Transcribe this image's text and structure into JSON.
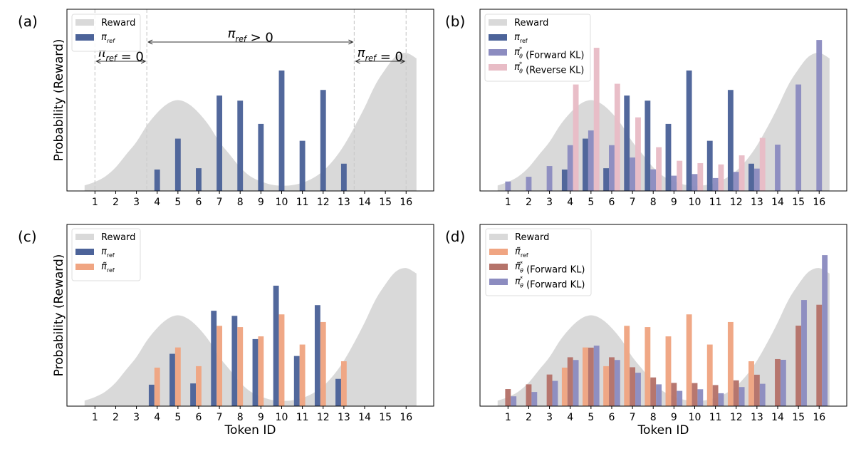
{
  "colors": {
    "reward": "#d9d9d9",
    "pi_ref": "#4c6399",
    "pi_theta_forward": "#8c8cc0",
    "pi_theta_reverse": "#e8bcc6",
    "pi_tilde_ref": "#f0a582",
    "pi_tilde_theta_forward": "#b5736a",
    "axis": "#000000",
    "dashed_line": "#cccccc"
  },
  "chart_data": [
    {
      "panel_label": "(a)",
      "type": "bar",
      "ylabel": "Probability (Reward)",
      "xlabel": "",
      "categories": [
        1,
        2,
        3,
        4,
        5,
        6,
        7,
        8,
        9,
        10,
        11,
        12,
        13,
        14,
        15,
        16
      ],
      "ylim": [
        0,
        1
      ],
      "xlim": [
        -0.35,
        17.33
      ],
      "grid": false,
      "legend_placement": "upper-left",
      "reward": {
        "name": "Reward",
        "type": "area",
        "x": [
          0.5,
          1,
          1.5,
          2,
          2.5,
          3,
          3.5,
          4,
          4.5,
          5,
          5.5,
          6,
          6.5,
          7,
          7.5,
          8,
          8.5,
          9,
          9.5,
          10,
          10.5,
          11,
          11.5,
          12,
          12.5,
          13,
          13.5,
          14,
          14.5,
          15,
          15.5,
          16,
          16.5
        ],
        "y": [
          0.03,
          0.05,
          0.08,
          0.13,
          0.2,
          0.27,
          0.36,
          0.43,
          0.48,
          0.5,
          0.48,
          0.43,
          0.36,
          0.27,
          0.2,
          0.13,
          0.08,
          0.053,
          0.035,
          0.029,
          0.032,
          0.045,
          0.07,
          0.11,
          0.17,
          0.25,
          0.35,
          0.46,
          0.58,
          0.67,
          0.74,
          0.76,
          0.73
        ]
      },
      "series": [
        {
          "name": "π_ref",
          "legend": {
            "base": "π",
            "sub": "ref",
            "sup": "",
            "suffix": "",
            "italic_sub": true
          },
          "color_key": "pi_ref",
          "offset": 0,
          "x": [
            4,
            5,
            6,
            7,
            8,
            9,
            10,
            11,
            12,
            13
          ],
          "values": [
            0.118,
            0.288,
            0.125,
            0.525,
            0.497,
            0.369,
            0.663,
            0.276,
            0.556,
            0.15
          ]
        }
      ],
      "vlines": [
        1,
        3.5,
        13.5,
        16
      ],
      "annotations": [
        {
          "text_base": "π",
          "text_sub": "ref",
          "text_rest": " = 0",
          "from": 1,
          "to": 3.5,
          "level": "low"
        },
        {
          "text_base": "π",
          "text_sub": "ref",
          "text_rest": " > 0",
          "from": 3.5,
          "to": 13.5,
          "level": "high"
        },
        {
          "text_base": "π",
          "text_sub": "ref",
          "text_rest": " = 0",
          "from": 13.5,
          "to": 16,
          "level": "low"
        }
      ]
    },
    {
      "panel_label": "(b)",
      "type": "bar",
      "ylabel": "",
      "xlabel": "",
      "categories": [
        1,
        2,
        3,
        4,
        5,
        6,
        7,
        8,
        9,
        10,
        11,
        12,
        13,
        14,
        15,
        16
      ],
      "ylim": [
        0,
        1
      ],
      "xlim": [
        -0.35,
        17.33
      ],
      "grid": false,
      "legend_placement": "upper-left",
      "reward": {
        "name": "Reward",
        "type": "area",
        "same_as_panel": "(a)"
      },
      "series": [
        {
          "name": "π_ref",
          "legend": {
            "base": "π",
            "sub": "ref",
            "sup": "",
            "suffix": ""
          },
          "color_key": "pi_ref",
          "offset": -1,
          "x": [
            4,
            5,
            6,
            7,
            8,
            9,
            10,
            11,
            12,
            13
          ],
          "values": [
            0.118,
            0.288,
            0.125,
            0.525,
            0.497,
            0.369,
            0.663,
            0.276,
            0.556,
            0.15
          ]
        },
        {
          "name": "π_θ* (Forward KL)",
          "legend": {
            "base": "π",
            "sub": "θ",
            "sup": "*",
            "suffix": " (Forward KL)"
          },
          "color_key": "pi_theta_forward",
          "offset": 0,
          "x": [
            1,
            2,
            3,
            4,
            5,
            6,
            7,
            8,
            9,
            10,
            11,
            12,
            13,
            14,
            15,
            16
          ],
          "values": [
            0.052,
            0.078,
            0.137,
            0.252,
            0.333,
            0.252,
            0.184,
            0.119,
            0.084,
            0.093,
            0.071,
            0.105,
            0.123,
            0.255,
            0.586,
            0.831
          ]
        },
        {
          "name": "π_θ* (Reverse KL)",
          "legend": {
            "base": "π",
            "sub": "θ",
            "sup": "*",
            "suffix": " (Reverse KL)"
          },
          "color_key": "pi_theta_reverse",
          "offset": 1,
          "x": [
            4,
            5,
            6,
            7,
            8,
            9,
            10,
            11,
            12,
            13
          ],
          "values": [
            0.586,
            0.788,
            0.59,
            0.405,
            0.241,
            0.166,
            0.153,
            0.146,
            0.196,
            0.292
          ]
        }
      ]
    },
    {
      "panel_label": "(c)",
      "type": "bar",
      "ylabel": "Probability (Reward)",
      "xlabel": "Token ID",
      "categories": [
        1,
        2,
        3,
        4,
        5,
        6,
        7,
        8,
        9,
        10,
        11,
        12,
        13,
        14,
        15,
        16
      ],
      "ylim": [
        0,
        1
      ],
      "xlim": [
        -0.35,
        17.33
      ],
      "grid": false,
      "legend_placement": "upper-left",
      "reward": {
        "name": "Reward",
        "type": "area",
        "same_as_panel": "(a)"
      },
      "series": [
        {
          "name": "π_ref",
          "legend": {
            "base": "π",
            "sub": "ref",
            "sup": "",
            "suffix": ""
          },
          "color_key": "pi_ref",
          "offset": -1,
          "x": [
            4,
            5,
            6,
            7,
            8,
            9,
            10,
            11,
            12,
            13
          ],
          "values": [
            0.118,
            0.288,
            0.125,
            0.525,
            0.497,
            0.369,
            0.663,
            0.276,
            0.556,
            0.15
          ]
        },
        {
          "name": "π̃_ref",
          "legend": {
            "base": "π̃",
            "sub": "ref",
            "sup": "",
            "suffix": ""
          },
          "color_key": "pi_tilde_ref",
          "offset": 0,
          "x": [
            4,
            5,
            6,
            7,
            8,
            9,
            10,
            11,
            12,
            13
          ],
          "values": [
            0.212,
            0.323,
            0.22,
            0.442,
            0.435,
            0.384,
            0.505,
            0.339,
            0.463,
            0.247
          ]
        }
      ]
    },
    {
      "panel_label": "(d)",
      "type": "bar",
      "ylabel": "",
      "xlabel": "Token ID",
      "categories": [
        1,
        2,
        3,
        4,
        5,
        6,
        7,
        8,
        9,
        10,
        11,
        12,
        13,
        14,
        15,
        16
      ],
      "ylim": [
        0,
        1
      ],
      "xlim": [
        -0.35,
        17.33
      ],
      "grid": false,
      "legend_placement": "upper-left",
      "reward": {
        "name": "Reward",
        "type": "area",
        "same_as_panel": "(a)"
      },
      "series": [
        {
          "name": "π̃_ref",
          "legend": {
            "base": "π̃",
            "sub": "ref",
            "sup": "",
            "suffix": ""
          },
          "color_key": "pi_tilde_ref",
          "offset": -1,
          "x": [
            4,
            5,
            6,
            7,
            8,
            9,
            10,
            11,
            12,
            13
          ],
          "values": [
            0.212,
            0.323,
            0.22,
            0.442,
            0.435,
            0.384,
            0.505,
            0.339,
            0.463,
            0.247
          ]
        },
        {
          "name": "π̃_θ* (Forward KL)",
          "legend": {
            "base": "π̃",
            "sub": "θ",
            "sup": "*",
            "suffix": " (Forward KL)"
          },
          "color_key": "pi_tilde_theta_forward",
          "offset": 0,
          "x": [
            1,
            2,
            3,
            4,
            5,
            6,
            7,
            8,
            9,
            10,
            11,
            12,
            13,
            14,
            15,
            16
          ],
          "values": [
            0.094,
            0.12,
            0.174,
            0.269,
            0.322,
            0.269,
            0.214,
            0.158,
            0.128,
            0.127,
            0.116,
            0.142,
            0.173,
            0.259,
            0.443,
            0.558
          ]
        },
        {
          "name": "π_θ* (Forward KL)",
          "legend": {
            "base": "π",
            "sub": "θ",
            "sup": "*",
            "suffix": " (Forward KL)"
          },
          "color_key": "pi_theta_forward",
          "offset": 1,
          "x": [
            1,
            2,
            3,
            4,
            5,
            6,
            7,
            8,
            9,
            10,
            11,
            12,
            13,
            14,
            15,
            16
          ],
          "values": [
            0.054,
            0.078,
            0.139,
            0.254,
            0.333,
            0.254,
            0.184,
            0.12,
            0.084,
            0.093,
            0.071,
            0.105,
            0.123,
            0.255,
            0.584,
            0.831
          ]
        }
      ]
    }
  ]
}
